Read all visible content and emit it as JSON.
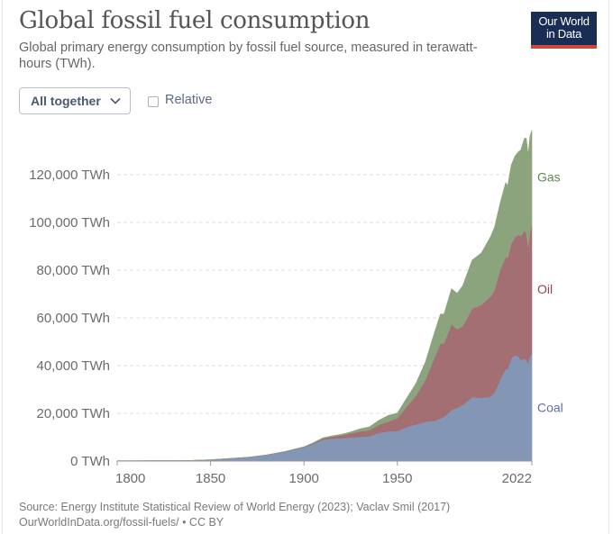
{
  "header": {
    "title": "Global fossil fuel consumption",
    "subtitle": "Global primary energy consumption by fossil fuel source, measured in terawatt-hours (TWh).",
    "logo_line1": "Our World",
    "logo_line2": "in Data"
  },
  "controls": {
    "stack_mode": "All together",
    "relative_label": "Relative",
    "relative_checked": false
  },
  "footer": {
    "source": "Source: Energy Institute Statistical Review of World Energy (2023); Vaclav Smil (2017)",
    "url_line": "OurWorldInData.org/fossil-fuels/ • CC BY"
  },
  "chart_data": {
    "type": "area",
    "stacked": true,
    "title": "Global fossil fuel consumption",
    "xlabel": "",
    "ylabel": "",
    "xlim": [
      1800,
      2022
    ],
    "ylim": [
      0,
      130000
    ],
    "y_ticks": [
      0,
      20000,
      40000,
      60000,
      80000,
      100000,
      120000
    ],
    "y_tick_labels": [
      "0 TWh",
      "20,000 TWh",
      "40,000 TWh",
      "60,000 TWh",
      "80,000 TWh",
      "100,000 TWh",
      "120,000 TWh"
    ],
    "x_ticks": [
      1800,
      1850,
      1900,
      1950,
      2022
    ],
    "x_tick_labels": [
      "1800",
      "1850",
      "1900",
      "1950",
      "2022"
    ],
    "grid": "horizontal dashed",
    "legend": "inline-right",
    "colors": {
      "Coal": "#8496b6",
      "Oil": "#a46f73",
      "Gas": "#8ca47d"
    },
    "label_colors": {
      "Coal": "#5b6fa6",
      "Oil": "#8a4a4f",
      "Gas": "#5d8a4c"
    },
    "x": [
      1800,
      1810,
      1820,
      1830,
      1840,
      1850,
      1860,
      1870,
      1880,
      1890,
      1900,
      1905,
      1910,
      1915,
      1920,
      1925,
      1930,
      1935,
      1940,
      1945,
      1950,
      1955,
      1960,
      1965,
      1970,
      1973,
      1975,
      1979,
      1982,
      1985,
      1990,
      1995,
      2000,
      2002,
      2005,
      2008,
      2009,
      2011,
      2013,
      2015,
      2016,
      2018,
      2019,
      2020,
      2021,
      2022
    ],
    "series": [
      {
        "name": "Coal",
        "values": [
          97,
          128,
          153,
          198,
          267,
          569,
          1062,
          1580,
          2540,
          3880,
          5730,
          7200,
          8950,
          9400,
          9600,
          9900,
          10100,
          10400,
          11800,
          12500,
          12600,
          14300,
          15400,
          16500,
          16900,
          17900,
          18500,
          21400,
          22300,
          23500,
          26800,
          26500,
          27000,
          28800,
          34100,
          38700,
          38600,
          43200,
          44400,
          43800,
          42300,
          43000,
          42300,
          41000,
          44000,
          44800
        ]
      },
      {
        "name": "Oil",
        "values": [
          0,
          0,
          0,
          0,
          0,
          0,
          0,
          6,
          33,
          89,
          181,
          350,
          560,
          800,
          1200,
          1700,
          2300,
          2600,
          3300,
          4000,
          5400,
          8500,
          12000,
          17500,
          26700,
          31400,
          30800,
          36000,
          33000,
          33000,
          37000,
          39000,
          42000,
          43000,
          46000,
          47000,
          46500,
          48000,
          49500,
          51000,
          52000,
          53500,
          53700,
          48800,
          51700,
          54500
        ]
      },
      {
        "name": "Gas",
        "values": [
          0,
          0,
          0,
          0,
          0,
          0,
          0,
          0,
          9,
          98,
          64,
          130,
          200,
          310,
          420,
          600,
          1100,
          1300,
          1900,
          2600,
          2100,
          3600,
          5200,
          7500,
          10700,
          12300,
          12400,
          14800,
          15000,
          17000,
          20400,
          21800,
          25200,
          26200,
          28000,
          31000,
          30200,
          33000,
          34000,
          35000,
          35900,
          38800,
          39300,
          38500,
          40400,
          39400
        ]
      }
    ]
  }
}
